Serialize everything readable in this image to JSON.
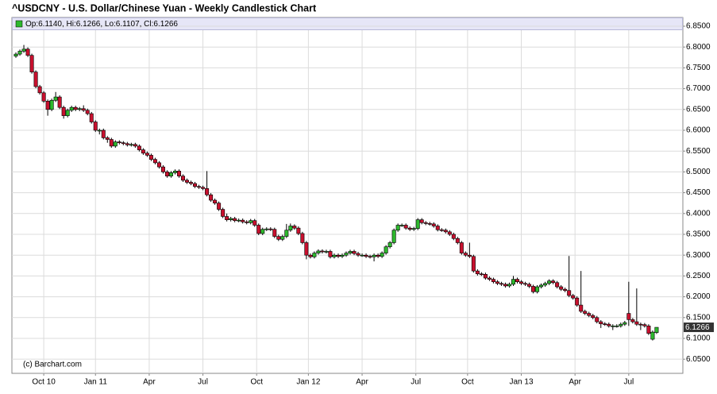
{
  "chart_data": {
    "type": "candlestick",
    "title": "^USDCNY - U.S. Dollar/Chinese Yuan - Weekly Candlestick Chart",
    "legend": "Op:6.1140, Hi:6.1266, Lo:6.1107, Cl:6.1266",
    "watermark": "(c) Barchart.com",
    "up_color": "#2db82d",
    "down_color": "#c8102e",
    "legend_color": "#2db82d",
    "grid": true,
    "ylim": [
      6.016,
      6.871
    ],
    "yticks": [
      {
        "value": 6.05,
        "label": "6.0500"
      },
      {
        "value": 6.1,
        "label": "6.1000"
      },
      {
        "value": 6.15,
        "label": "6.1500"
      },
      {
        "value": 6.2,
        "label": "6.2000"
      },
      {
        "value": 6.25,
        "label": "6.2500"
      },
      {
        "value": 6.3,
        "label": "6.3000"
      },
      {
        "value": 6.35,
        "label": "6.3500"
      },
      {
        "value": 6.4,
        "label": "6.4000"
      },
      {
        "value": 6.45,
        "label": "6.4500"
      },
      {
        "value": 6.5,
        "label": "6.5000"
      },
      {
        "value": 6.55,
        "label": "6.5500"
      },
      {
        "value": 6.6,
        "label": "6.6000"
      },
      {
        "value": 6.65,
        "label": "6.6500"
      },
      {
        "value": 6.7,
        "label": "6.7000"
      },
      {
        "value": 6.75,
        "label": "6.7500"
      },
      {
        "value": 6.8,
        "label": "6.8000"
      },
      {
        "value": 6.85,
        "label": "6.8500"
      }
    ],
    "xlim": [
      -1,
      167.6
    ],
    "xticks": [
      {
        "value": 7,
        "label": "Oct 10"
      },
      {
        "value": 20,
        "label": "Jan 11"
      },
      {
        "value": 33.5,
        "label": "Apr"
      },
      {
        "value": 47,
        "label": "Jul"
      },
      {
        "value": 60.5,
        "label": "Oct"
      },
      {
        "value": 73.5,
        "label": "Jan 12"
      },
      {
        "value": 87,
        "label": "Apr"
      },
      {
        "value": 100.5,
        "label": "Jul"
      },
      {
        "value": 113.5,
        "label": "Oct"
      },
      {
        "value": 127,
        "label": "Jan 13"
      },
      {
        "value": 140.5,
        "label": "Apr"
      },
      {
        "value": 154,
        "label": "Jul"
      }
    ],
    "open": [
      6.778,
      6.783,
      6.79,
      6.795,
      6.78,
      6.74,
      6.705,
      6.69,
      6.67,
      6.65,
      6.672,
      6.68,
      6.655,
      6.635,
      6.648,
      6.655,
      6.65,
      6.652,
      6.648,
      6.64,
      6.62,
      6.6,
      6.6,
      6.582,
      6.578,
      6.562,
      6.572,
      6.57,
      6.568,
      6.565,
      6.566,
      6.562,
      6.553,
      6.545,
      6.54,
      6.53,
      6.522,
      6.512,
      6.5,
      6.49,
      6.498,
      6.502,
      6.49,
      6.48,
      6.475,
      6.472,
      6.465,
      6.463,
      6.46,
      6.445,
      6.432,
      6.425,
      6.41,
      6.393,
      6.385,
      6.388,
      6.383,
      6.384,
      6.38,
      6.378,
      6.383,
      6.372,
      6.352,
      6.362,
      6.363,
      6.362,
      6.345,
      6.338,
      6.345,
      6.36,
      6.37,
      6.365,
      6.352,
      6.33,
      6.3,
      6.296,
      6.305,
      6.31,
      6.308,
      6.309,
      6.296,
      6.3,
      6.297,
      6.3,
      6.305,
      6.309,
      6.304,
      6.3,
      6.3,
      6.297,
      6.296,
      6.3,
      6.297,
      6.305,
      6.32,
      6.33,
      6.36,
      6.372,
      6.372,
      6.365,
      6.362,
      6.364,
      6.385,
      6.378,
      6.376,
      6.375,
      6.37,
      6.361,
      6.36,
      6.356,
      6.35,
      6.34,
      6.33,
      6.305,
      6.3,
      6.297,
      6.262,
      6.255,
      6.254,
      6.245,
      6.242,
      6.236,
      6.232,
      6.23,
      6.226,
      6.23,
      6.242,
      6.236,
      6.232,
      6.23,
      6.225,
      6.212,
      6.224,
      6.228,
      6.232,
      6.238,
      6.234,
      6.224,
      6.218,
      6.215,
      6.203,
      6.197,
      6.18,
      6.165,
      6.16,
      6.155,
      6.15,
      6.14,
      6.135,
      6.134,
      6.13,
      6.13,
      6.13,
      6.134,
      6.16,
      6.145,
      6.14,
      6.134,
      6.133,
      6.13,
      6.098,
      6.114
    ],
    "high": [
      6.787,
      6.794,
      6.805,
      6.799,
      6.784,
      6.744,
      6.709,
      6.694,
      6.674,
      6.676,
      6.692,
      6.684,
      6.659,
      6.652,
      6.659,
      6.659,
      6.656,
      6.66,
      6.652,
      6.644,
      6.624,
      6.604,
      6.604,
      6.586,
      6.582,
      6.576,
      6.576,
      6.574,
      6.572,
      6.57,
      6.57,
      6.566,
      6.557,
      6.549,
      6.544,
      6.534,
      6.526,
      6.516,
      6.504,
      6.502,
      6.506,
      6.506,
      6.494,
      6.484,
      6.479,
      6.476,
      6.469,
      6.467,
      6.502,
      6.449,
      6.436,
      6.429,
      6.414,
      6.4,
      6.392,
      6.392,
      6.388,
      6.388,
      6.384,
      6.387,
      6.387,
      6.376,
      6.366,
      6.367,
      6.367,
      6.366,
      6.349,
      6.349,
      6.375,
      6.376,
      6.374,
      6.369,
      6.356,
      6.334,
      6.304,
      6.309,
      6.314,
      6.314,
      6.313,
      6.313,
      6.304,
      6.304,
      6.304,
      6.309,
      6.313,
      6.313,
      6.308,
      6.304,
      6.304,
      6.301,
      6.304,
      6.304,
      6.309,
      6.324,
      6.334,
      6.364,
      6.376,
      6.376,
      6.376,
      6.369,
      6.368,
      6.389,
      6.389,
      6.382,
      6.38,
      6.379,
      6.374,
      6.365,
      6.364,
      6.36,
      6.354,
      6.344,
      6.334,
      6.309,
      6.33,
      6.301,
      6.266,
      6.259,
      6.258,
      6.249,
      6.246,
      6.24,
      6.236,
      6.234,
      6.234,
      6.25,
      6.246,
      6.24,
      6.236,
      6.234,
      6.229,
      6.228,
      6.232,
      6.236,
      6.242,
      6.242,
      6.238,
      6.228,
      6.222,
      6.298,
      6.207,
      6.201,
      6.262,
      6.169,
      6.164,
      6.159,
      6.154,
      6.144,
      6.139,
      6.138,
      6.134,
      6.134,
      6.138,
      6.142,
      6.236,
      6.149,
      6.22,
      6.138,
      6.137,
      6.134,
      6.119,
      6.1266
    ],
    "low": [
      6.774,
      6.779,
      6.786,
      6.776,
      6.736,
      6.701,
      6.686,
      6.666,
      6.635,
      6.646,
      6.668,
      6.651,
      6.628,
      6.631,
      6.644,
      6.646,
      6.646,
      6.644,
      6.636,
      6.616,
      6.596,
      6.59,
      6.578,
      6.57,
      6.558,
      6.558,
      6.566,
      6.564,
      6.561,
      6.561,
      6.558,
      6.549,
      6.541,
      6.536,
      6.526,
      6.518,
      6.508,
      6.496,
      6.486,
      6.486,
      6.494,
      6.486,
      6.476,
      6.471,
      6.468,
      6.461,
      6.459,
      6.456,
      6.441,
      6.428,
      6.421,
      6.406,
      6.389,
      6.381,
      6.381,
      6.379,
      6.379,
      6.376,
      6.374,
      6.374,
      6.368,
      6.348,
      6.348,
      6.358,
      6.358,
      6.341,
      6.334,
      6.334,
      6.341,
      6.356,
      6.361,
      6.348,
      6.326,
      6.29,
      6.292,
      6.292,
      6.301,
      6.304,
      6.304,
      6.292,
      6.292,
      6.293,
      6.293,
      6.296,
      6.301,
      6.3,
      6.296,
      6.296,
      6.293,
      6.292,
      6.285,
      6.293,
      6.293,
      6.301,
      6.316,
      6.326,
      6.356,
      6.368,
      6.361,
      6.358,
      6.358,
      6.36,
      6.374,
      6.372,
      6.371,
      6.366,
      6.357,
      6.356,
      6.352,
      6.346,
      6.336,
      6.326,
      6.301,
      6.296,
      6.293,
      6.258,
      6.251,
      6.25,
      6.241,
      6.238,
      6.232,
      6.228,
      6.226,
      6.222,
      6.222,
      6.226,
      6.232,
      6.228,
      6.226,
      6.221,
      6.208,
      6.208,
      6.22,
      6.224,
      6.228,
      6.23,
      6.22,
      6.214,
      6.211,
      6.199,
      6.193,
      6.176,
      6.161,
      6.156,
      6.151,
      6.146,
      6.136,
      6.125,
      6.13,
      6.126,
      6.12,
      6.126,
      6.126,
      6.13,
      6.13,
      6.136,
      6.13,
      6.12,
      6.126,
      6.108,
      6.095,
      6.1107
    ],
    "close": [
      6.783,
      6.79,
      6.795,
      6.78,
      6.74,
      6.705,
      6.69,
      6.67,
      6.65,
      6.672,
      6.68,
      6.655,
      6.635,
      6.648,
      6.655,
      6.65,
      6.652,
      6.648,
      6.64,
      6.62,
      6.6,
      6.6,
      6.582,
      6.578,
      6.562,
      6.572,
      6.57,
      6.568,
      6.565,
      6.566,
      6.562,
      6.553,
      6.545,
      6.54,
      6.53,
      6.522,
      6.512,
      6.5,
      6.49,
      6.498,
      6.502,
      6.49,
      6.48,
      6.475,
      6.472,
      6.465,
      6.463,
      6.46,
      6.445,
      6.432,
      6.425,
      6.41,
      6.393,
      6.385,
      6.388,
      6.383,
      6.384,
      6.38,
      6.378,
      6.383,
      6.372,
      6.352,
      6.362,
      6.363,
      6.362,
      6.345,
      6.338,
      6.345,
      6.36,
      6.37,
      6.365,
      6.352,
      6.33,
      6.3,
      6.296,
      6.305,
      6.31,
      6.308,
      6.309,
      6.296,
      6.3,
      6.297,
      6.3,
      6.305,
      6.309,
      6.304,
      6.3,
      6.3,
      6.297,
      6.296,
      6.3,
      6.297,
      6.305,
      6.32,
      6.33,
      6.36,
      6.372,
      6.372,
      6.365,
      6.362,
      6.364,
      6.385,
      6.378,
      6.376,
      6.375,
      6.37,
      6.361,
      6.36,
      6.356,
      6.35,
      6.34,
      6.33,
      6.305,
      6.3,
      6.297,
      6.262,
      6.255,
      6.254,
      6.245,
      6.242,
      6.236,
      6.232,
      6.23,
      6.226,
      6.23,
      6.242,
      6.236,
      6.232,
      6.23,
      6.225,
      6.212,
      6.224,
      6.228,
      6.232,
      6.238,
      6.234,
      6.224,
      6.218,
      6.215,
      6.203,
      6.197,
      6.18,
      6.165,
      6.16,
      6.155,
      6.15,
      6.14,
      6.135,
      6.134,
      6.13,
      6.13,
      6.13,
      6.134,
      6.138,
      6.145,
      6.14,
      6.134,
      6.133,
      6.13,
      6.112,
      6.115,
      6.1266
    ]
  }
}
